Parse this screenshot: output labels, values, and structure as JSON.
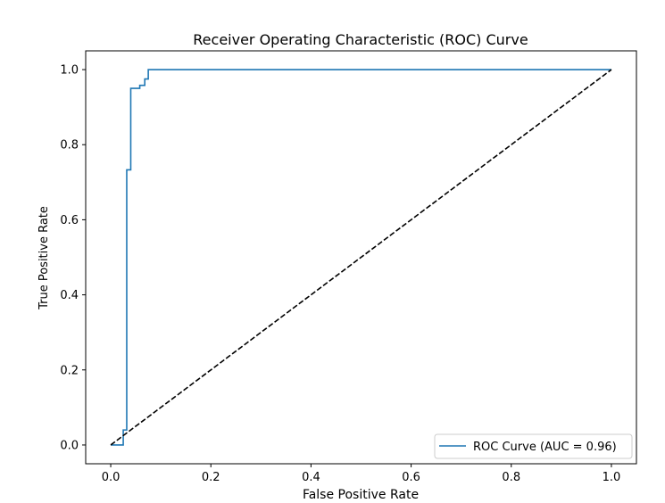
{
  "chart_data": {
    "type": "line",
    "title": "Receiver Operating Characteristic (ROC) Curve",
    "xlabel": "False Positive Rate",
    "ylabel": "True Positive Rate",
    "xlim": [
      -0.05,
      1.05
    ],
    "ylim": [
      -0.05,
      1.05
    ],
    "xticks": [
      "0.0",
      "0.2",
      "0.4",
      "0.6",
      "0.8",
      "1.0"
    ],
    "yticks": [
      "0.0",
      "0.2",
      "0.4",
      "0.6",
      "0.8",
      "1.0"
    ],
    "grid": false,
    "legend_position": "lower-right",
    "series": [
      {
        "name": "ROC Curve (AUC = 0.96)",
        "color": "#1f77b4",
        "style": "solid",
        "step": true,
        "x": [
          0.0,
          0.025,
          0.025,
          0.032,
          0.032,
          0.04,
          0.04,
          0.058,
          0.058,
          0.068,
          0.068,
          0.075,
          0.075,
          1.0
        ],
        "y": [
          0.0,
          0.0,
          0.04,
          0.04,
          0.733,
          0.733,
          0.95,
          0.95,
          0.958,
          0.958,
          0.975,
          0.975,
          1.0,
          1.0
        ]
      },
      {
        "color": "#000000",
        "style": "dashed",
        "x": [
          0.0,
          1.0
        ],
        "y": [
          0.0,
          1.0
        ]
      }
    ]
  }
}
